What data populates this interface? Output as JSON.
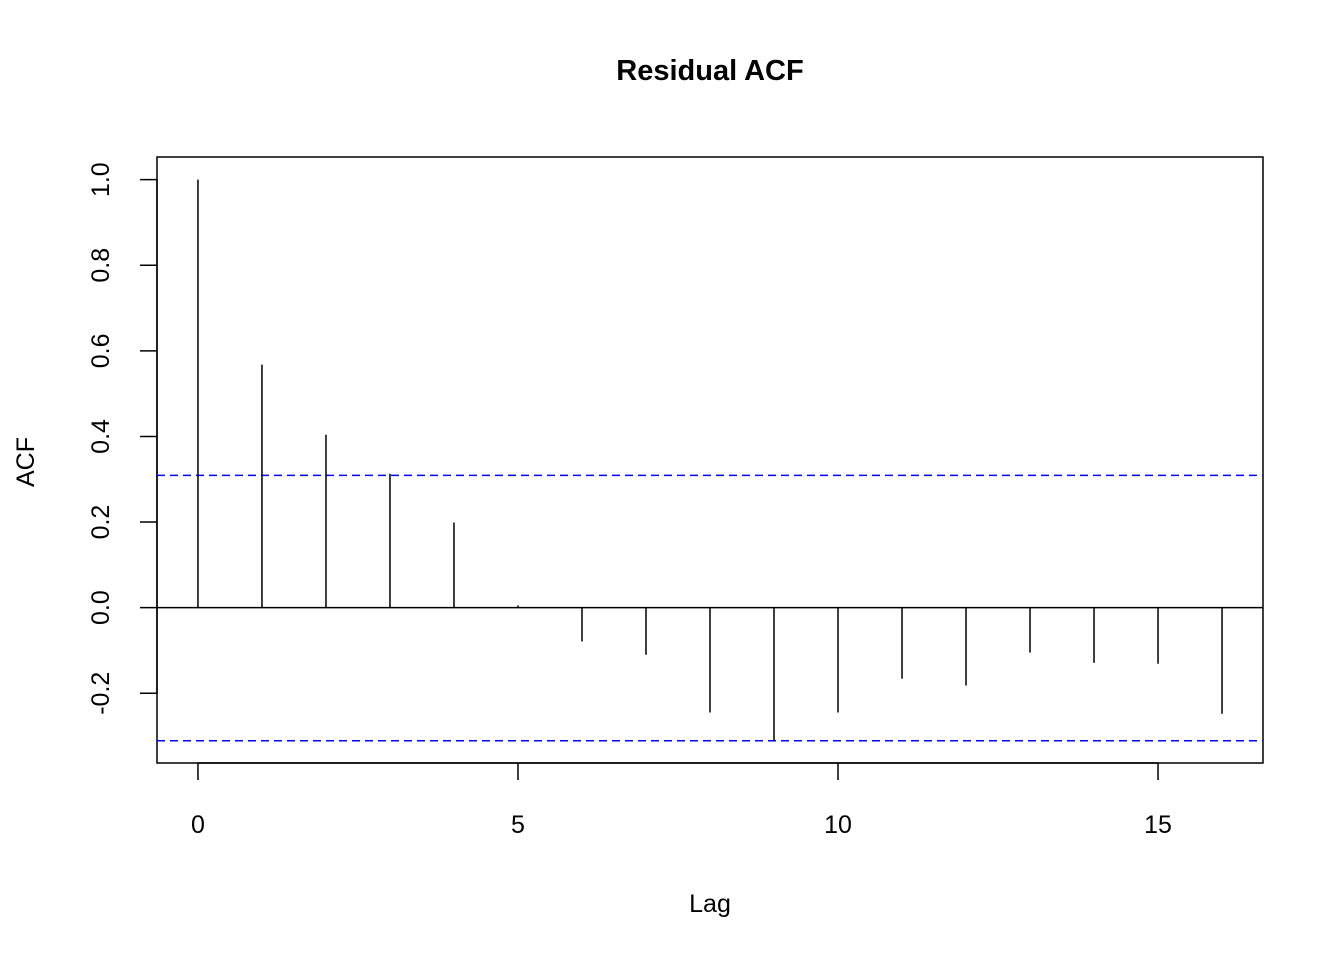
{
  "chart_data": {
    "type": "bar",
    "subtype": "acf-spikes",
    "title": "Residual ACF",
    "xlabel": "Lag",
    "ylabel": "ACF",
    "x": [
      0,
      1,
      2,
      3,
      4,
      5,
      6,
      7,
      8,
      9,
      10,
      11,
      12,
      13,
      14,
      15,
      16
    ],
    "values": [
      1.0,
      0.568,
      0.404,
      0.313,
      0.199,
      0.005,
      -0.079,
      -0.11,
      -0.245,
      -0.311,
      -0.245,
      -0.166,
      -0.182,
      -0.105,
      -0.129,
      -0.131,
      -0.248
    ],
    "confidence_band": {
      "upper": 0.309,
      "lower": -0.311,
      "color": "#0000ff",
      "style": "dashed"
    },
    "xlim": [
      -0.64,
      16.64
    ],
    "ylim": [
      -0.363,
      1.053
    ],
    "xticks": [
      0,
      5,
      10,
      15
    ],
    "xtick_labels": [
      "0",
      "5",
      "10",
      "15"
    ],
    "yticks": [
      -0.2,
      0.0,
      0.2,
      0.4,
      0.6,
      0.8,
      1.0
    ],
    "ytick_labels": [
      "-0.2",
      "0.0",
      "0.2",
      "0.4",
      "0.6",
      "0.8",
      "1.0"
    ],
    "grid": false,
    "legend": "none"
  }
}
